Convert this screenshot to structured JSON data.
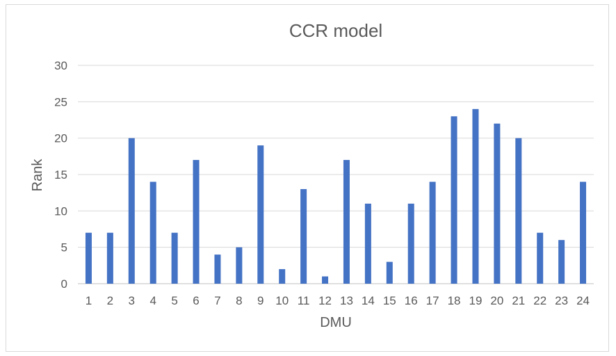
{
  "chart_data": {
    "type": "bar",
    "title": "CCR model",
    "xlabel": "DMU",
    "ylabel": "Rank",
    "ylim": [
      0,
      30
    ],
    "yticks": [
      0,
      5,
      10,
      15,
      20,
      25,
      30
    ],
    "grid": true,
    "legend": "none",
    "categories": [
      "1",
      "2",
      "3",
      "4",
      "5",
      "6",
      "7",
      "8",
      "9",
      "10",
      "11",
      "12",
      "13",
      "14",
      "15",
      "16",
      "17",
      "18",
      "19",
      "20",
      "21",
      "22",
      "23",
      "24"
    ],
    "values": [
      7,
      7,
      20,
      14,
      7,
      17,
      4,
      5,
      19,
      2,
      13,
      1,
      17,
      11,
      3,
      11,
      14,
      23,
      24,
      22,
      20,
      7,
      6,
      14
    ],
    "bar_color": "#4472c4"
  }
}
